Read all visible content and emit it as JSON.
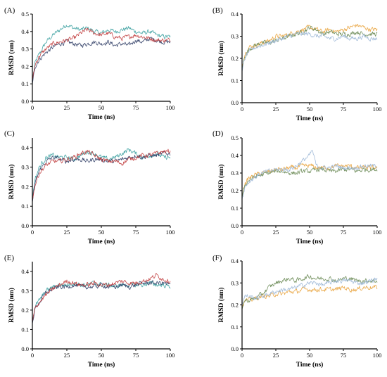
{
  "colors": {
    "navy": "#2b3a63",
    "teal": "#3aa0a0",
    "red": "#c0393b",
    "orange": "#e8a23a",
    "green": "#6a8a55",
    "lightblue": "#9bb6d6"
  },
  "chart_data": [
    {
      "panel": "(A)",
      "type": "line",
      "xlabel": "Time (ns)",
      "ylabel": "RMSD (nm)",
      "xlim": [
        0,
        100
      ],
      "ylim": [
        0,
        0.5
      ],
      "xticks": [
        0,
        25,
        50,
        75,
        100
      ],
      "yticks": [
        0.0,
        0.1,
        0.2,
        0.3,
        0.4,
        0.5
      ],
      "x": [
        0,
        2,
        5,
        10,
        15,
        20,
        25,
        30,
        35,
        40,
        45,
        50,
        55,
        60,
        65,
        70,
        75,
        80,
        85,
        90,
        95,
        100
      ],
      "series": [
        {
          "color": "teal",
          "values": [
            0.12,
            0.22,
            0.27,
            0.34,
            0.38,
            0.41,
            0.44,
            0.42,
            0.41,
            0.42,
            0.4,
            0.39,
            0.41,
            0.4,
            0.41,
            0.42,
            0.4,
            0.39,
            0.4,
            0.38,
            0.37,
            0.37
          ]
        },
        {
          "color": "navy",
          "values": [
            0.1,
            0.2,
            0.24,
            0.28,
            0.31,
            0.33,
            0.34,
            0.33,
            0.32,
            0.33,
            0.34,
            0.33,
            0.34,
            0.32,
            0.33,
            0.32,
            0.35,
            0.34,
            0.36,
            0.35,
            0.34,
            0.34
          ]
        },
        {
          "color": "red",
          "values": [
            0.12,
            0.21,
            0.26,
            0.3,
            0.33,
            0.34,
            0.35,
            0.36,
            0.39,
            0.41,
            0.39,
            0.38,
            0.39,
            0.37,
            0.36,
            0.37,
            0.38,
            0.37,
            0.36,
            0.35,
            0.35,
            0.35
          ]
        }
      ]
    },
    {
      "panel": "(B)",
      "type": "line",
      "xlabel": "Time (ns)",
      "ylabel": "RMSD (nm)",
      "xlim": [
        0,
        100
      ],
      "ylim": [
        0,
        0.4
      ],
      "xticks": [
        0,
        25,
        50,
        75,
        100
      ],
      "yticks": [
        0.0,
        0.1,
        0.2,
        0.3,
        0.4
      ],
      "x": [
        0,
        2,
        5,
        10,
        15,
        20,
        25,
        30,
        35,
        40,
        45,
        50,
        55,
        60,
        65,
        70,
        75,
        80,
        85,
        90,
        95,
        100
      ],
      "series": [
        {
          "color": "orange",
          "values": [
            0.16,
            0.22,
            0.25,
            0.26,
            0.27,
            0.28,
            0.3,
            0.3,
            0.31,
            0.32,
            0.33,
            0.34,
            0.33,
            0.32,
            0.33,
            0.32,
            0.33,
            0.34,
            0.35,
            0.34,
            0.33,
            0.33
          ]
        },
        {
          "color": "green",
          "values": [
            0.15,
            0.21,
            0.24,
            0.26,
            0.27,
            0.27,
            0.28,
            0.29,
            0.3,
            0.31,
            0.32,
            0.34,
            0.33,
            0.31,
            0.32,
            0.31,
            0.31,
            0.31,
            0.32,
            0.31,
            0.31,
            0.31
          ]
        },
        {
          "color": "lightblue",
          "values": [
            0.14,
            0.2,
            0.23,
            0.25,
            0.26,
            0.27,
            0.28,
            0.29,
            0.3,
            0.31,
            0.31,
            0.31,
            0.3,
            0.3,
            0.29,
            0.29,
            0.3,
            0.29,
            0.29,
            0.3,
            0.29,
            0.29
          ]
        }
      ]
    },
    {
      "panel": "(C)",
      "type": "line",
      "xlabel": "Time (ns)",
      "ylabel": "RMSD (nm)",
      "xlim": [
        0,
        100
      ],
      "ylim": [
        0,
        0.45
      ],
      "xticks": [
        0,
        25,
        50,
        75,
        100
      ],
      "yticks": [
        0.0,
        0.1,
        0.2,
        0.3,
        0.4
      ],
      "x": [
        0,
        2,
        5,
        10,
        15,
        20,
        25,
        30,
        35,
        40,
        45,
        50,
        55,
        60,
        65,
        70,
        75,
        80,
        85,
        90,
        95,
        100
      ],
      "series": [
        {
          "color": "teal",
          "values": [
            0.14,
            0.24,
            0.3,
            0.35,
            0.36,
            0.35,
            0.35,
            0.34,
            0.36,
            0.38,
            0.37,
            0.35,
            0.34,
            0.35,
            0.37,
            0.39,
            0.37,
            0.35,
            0.36,
            0.37,
            0.35,
            0.35
          ]
        },
        {
          "color": "navy",
          "values": [
            0.12,
            0.22,
            0.28,
            0.33,
            0.35,
            0.34,
            0.33,
            0.34,
            0.34,
            0.33,
            0.34,
            0.34,
            0.33,
            0.33,
            0.34,
            0.35,
            0.36,
            0.35,
            0.36,
            0.36,
            0.37,
            0.37
          ]
        },
        {
          "color": "red",
          "values": [
            0.13,
            0.21,
            0.27,
            0.31,
            0.33,
            0.33,
            0.34,
            0.35,
            0.37,
            0.38,
            0.36,
            0.34,
            0.33,
            0.33,
            0.32,
            0.34,
            0.35,
            0.36,
            0.36,
            0.37,
            0.38,
            0.38
          ]
        }
      ]
    },
    {
      "panel": "(D)",
      "type": "line",
      "xlabel": "Time (ns)",
      "ylabel": "RMSD (nm)",
      "xlim": [
        0,
        100
      ],
      "ylim": [
        0,
        0.5
      ],
      "xticks": [
        0,
        25,
        50,
        75,
        100
      ],
      "yticks": [
        0.0,
        0.1,
        0.2,
        0.3,
        0.4,
        0.5
      ],
      "x": [
        0,
        2,
        5,
        10,
        15,
        20,
        25,
        30,
        35,
        40,
        45,
        50,
        52,
        55,
        60,
        65,
        70,
        75,
        80,
        85,
        90,
        95,
        100
      ],
      "series": [
        {
          "color": "orange",
          "values": [
            0.17,
            0.24,
            0.27,
            0.29,
            0.3,
            0.31,
            0.32,
            0.32,
            0.33,
            0.33,
            0.34,
            0.34,
            0.34,
            0.33,
            0.33,
            0.33,
            0.34,
            0.34,
            0.34,
            0.33,
            0.33,
            0.33,
            0.33
          ]
        },
        {
          "color": "green",
          "values": [
            0.16,
            0.23,
            0.26,
            0.28,
            0.29,
            0.3,
            0.31,
            0.31,
            0.3,
            0.3,
            0.31,
            0.31,
            0.31,
            0.32,
            0.32,
            0.31,
            0.31,
            0.32,
            0.32,
            0.31,
            0.32,
            0.32,
            0.32
          ]
        },
        {
          "color": "lightblue",
          "values": [
            0.15,
            0.22,
            0.25,
            0.28,
            0.3,
            0.31,
            0.32,
            0.32,
            0.32,
            0.34,
            0.37,
            0.4,
            0.43,
            0.34,
            0.33,
            0.33,
            0.34,
            0.33,
            0.33,
            0.33,
            0.34,
            0.34,
            0.34
          ]
        }
      ]
    },
    {
      "panel": "(E)",
      "type": "line",
      "xlabel": "Time (ns)",
      "ylabel": "RMSD (nm)",
      "xlim": [
        0,
        100
      ],
      "ylim": [
        0,
        0.45
      ],
      "xticks": [
        0,
        25,
        50,
        75,
        100
      ],
      "yticks": [
        0.0,
        0.1,
        0.2,
        0.3,
        0.4
      ],
      "x": [
        0,
        2,
        5,
        10,
        15,
        20,
        25,
        30,
        35,
        40,
        45,
        50,
        55,
        60,
        65,
        70,
        75,
        80,
        85,
        90,
        95,
        100
      ],
      "series": [
        {
          "color": "teal",
          "values": [
            0.14,
            0.22,
            0.25,
            0.3,
            0.32,
            0.33,
            0.33,
            0.34,
            0.33,
            0.33,
            0.34,
            0.33,
            0.33,
            0.32,
            0.33,
            0.33,
            0.33,
            0.33,
            0.34,
            0.33,
            0.33,
            0.32
          ]
        },
        {
          "color": "navy",
          "values": [
            0.13,
            0.21,
            0.24,
            0.29,
            0.31,
            0.32,
            0.32,
            0.33,
            0.32,
            0.32,
            0.32,
            0.33,
            0.32,
            0.32,
            0.33,
            0.32,
            0.33,
            0.34,
            0.34,
            0.34,
            0.34,
            0.33
          ]
        },
        {
          "color": "red",
          "values": [
            0.14,
            0.21,
            0.24,
            0.28,
            0.31,
            0.33,
            0.35,
            0.34,
            0.33,
            0.33,
            0.34,
            0.33,
            0.33,
            0.34,
            0.35,
            0.34,
            0.34,
            0.35,
            0.36,
            0.38,
            0.36,
            0.35
          ]
        }
      ]
    },
    {
      "panel": "(F)",
      "type": "line",
      "xlabel": "Time (ns)",
      "ylabel": "RMSD (nm)",
      "xlim": [
        0,
        100
      ],
      "ylim": [
        0,
        0.4
      ],
      "xticks": [
        0,
        25,
        50,
        75,
        100
      ],
      "yticks": [
        0.0,
        0.1,
        0.2,
        0.3,
        0.4
      ],
      "x": [
        0,
        2,
        5,
        10,
        15,
        20,
        25,
        30,
        35,
        40,
        45,
        50,
        55,
        60,
        65,
        70,
        75,
        80,
        85,
        90,
        95,
        100
      ],
      "series": [
        {
          "color": "orange",
          "values": [
            0.19,
            0.22,
            0.22,
            0.23,
            0.24,
            0.24,
            0.25,
            0.25,
            0.26,
            0.26,
            0.27,
            0.27,
            0.27,
            0.27,
            0.27,
            0.27,
            0.28,
            0.27,
            0.27,
            0.28,
            0.28,
            0.28
          ]
        },
        {
          "color": "green",
          "values": [
            0.18,
            0.22,
            0.22,
            0.23,
            0.25,
            0.28,
            0.3,
            0.31,
            0.32,
            0.31,
            0.32,
            0.33,
            0.32,
            0.32,
            0.32,
            0.31,
            0.32,
            0.32,
            0.31,
            0.31,
            0.31,
            0.31
          ]
        },
        {
          "color": "lightblue",
          "values": [
            0.2,
            0.24,
            0.24,
            0.23,
            0.24,
            0.25,
            0.26,
            0.27,
            0.27,
            0.28,
            0.29,
            0.3,
            0.3,
            0.29,
            0.3,
            0.31,
            0.31,
            0.31,
            0.3,
            0.3,
            0.31,
            0.32
          ]
        }
      ]
    }
  ]
}
